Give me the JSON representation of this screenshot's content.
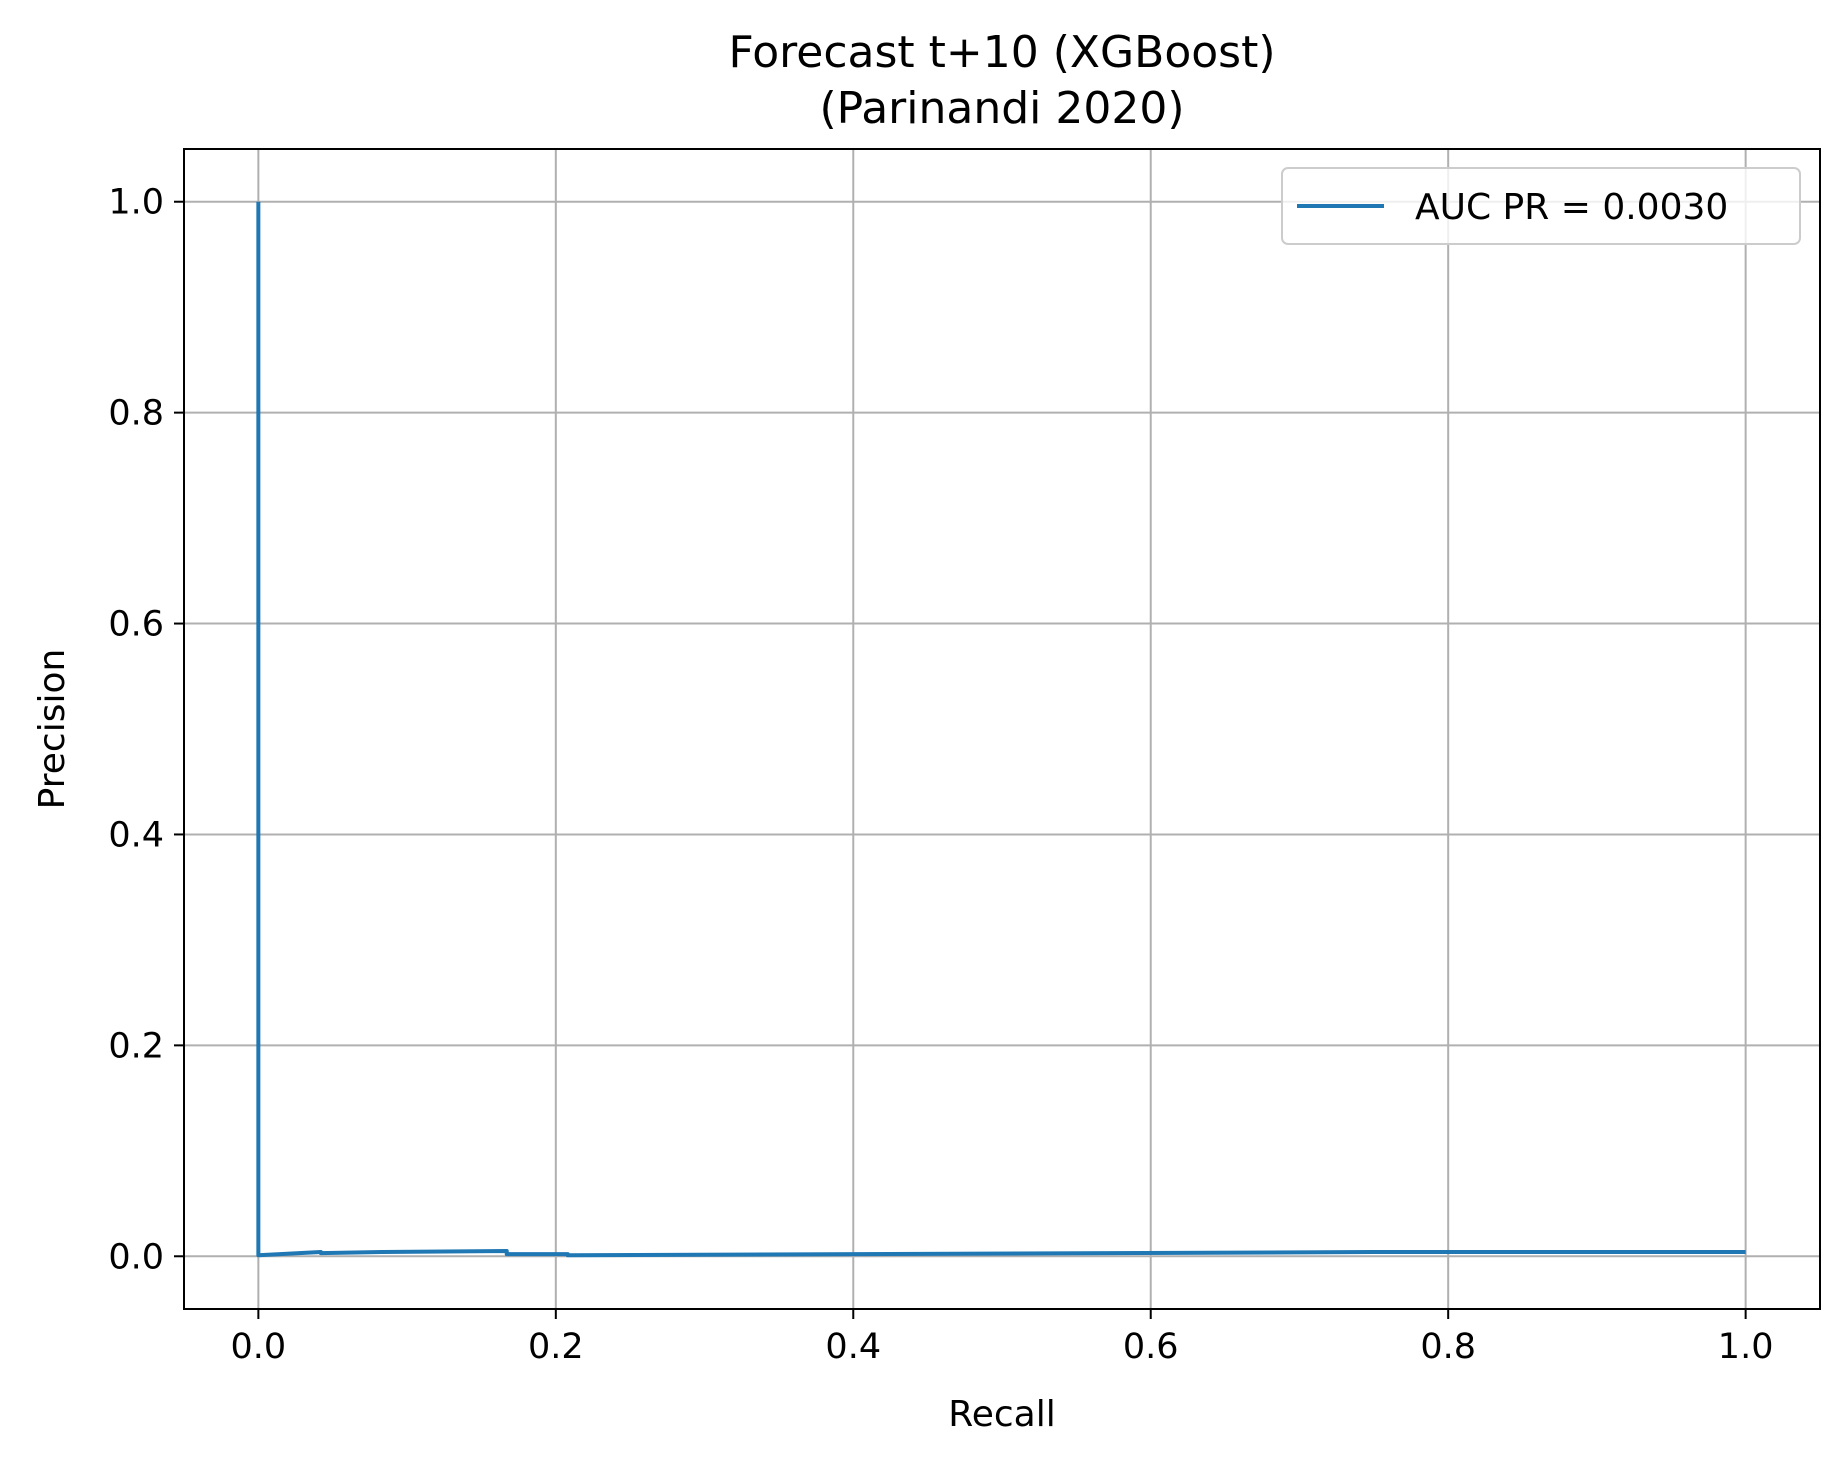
{
  "chart_data": {
    "type": "line",
    "title": "Forecast t+10 (XGBoost)",
    "subtitle": "(Parinandi 2020)",
    "xlabel": "Recall",
    "ylabel": "Precision",
    "xlim": [
      -0.05,
      1.05
    ],
    "ylim": [
      -0.05,
      1.05
    ],
    "xticks": [
      0.0,
      0.2,
      0.4,
      0.6,
      0.8,
      1.0
    ],
    "yticks": [
      0.0,
      0.2,
      0.4,
      0.6,
      0.8,
      1.0
    ],
    "xtick_labels": [
      "0.0",
      "0.2",
      "0.4",
      "0.6",
      "0.8",
      "1.0"
    ],
    "ytick_labels": [
      "0.0",
      "0.2",
      "0.4",
      "0.6",
      "0.8",
      "1.0"
    ],
    "grid": true,
    "legend_position": "top-right",
    "series": [
      {
        "name": "AUC PR = 0.0030",
        "color": "#1f77b4",
        "x": [
          0.0,
          0.0,
          0.0,
          0.042,
          0.042,
          0.083,
          0.083,
          0.167,
          0.167,
          0.208,
          0.208,
          0.75,
          0.75,
          1.0
        ],
        "y": [
          1.0,
          0.003,
          0.001,
          0.004,
          0.003,
          0.004,
          0.004,
          0.005,
          0.002,
          0.002,
          0.001,
          0.004,
          0.004,
          0.004
        ]
      }
    ]
  }
}
